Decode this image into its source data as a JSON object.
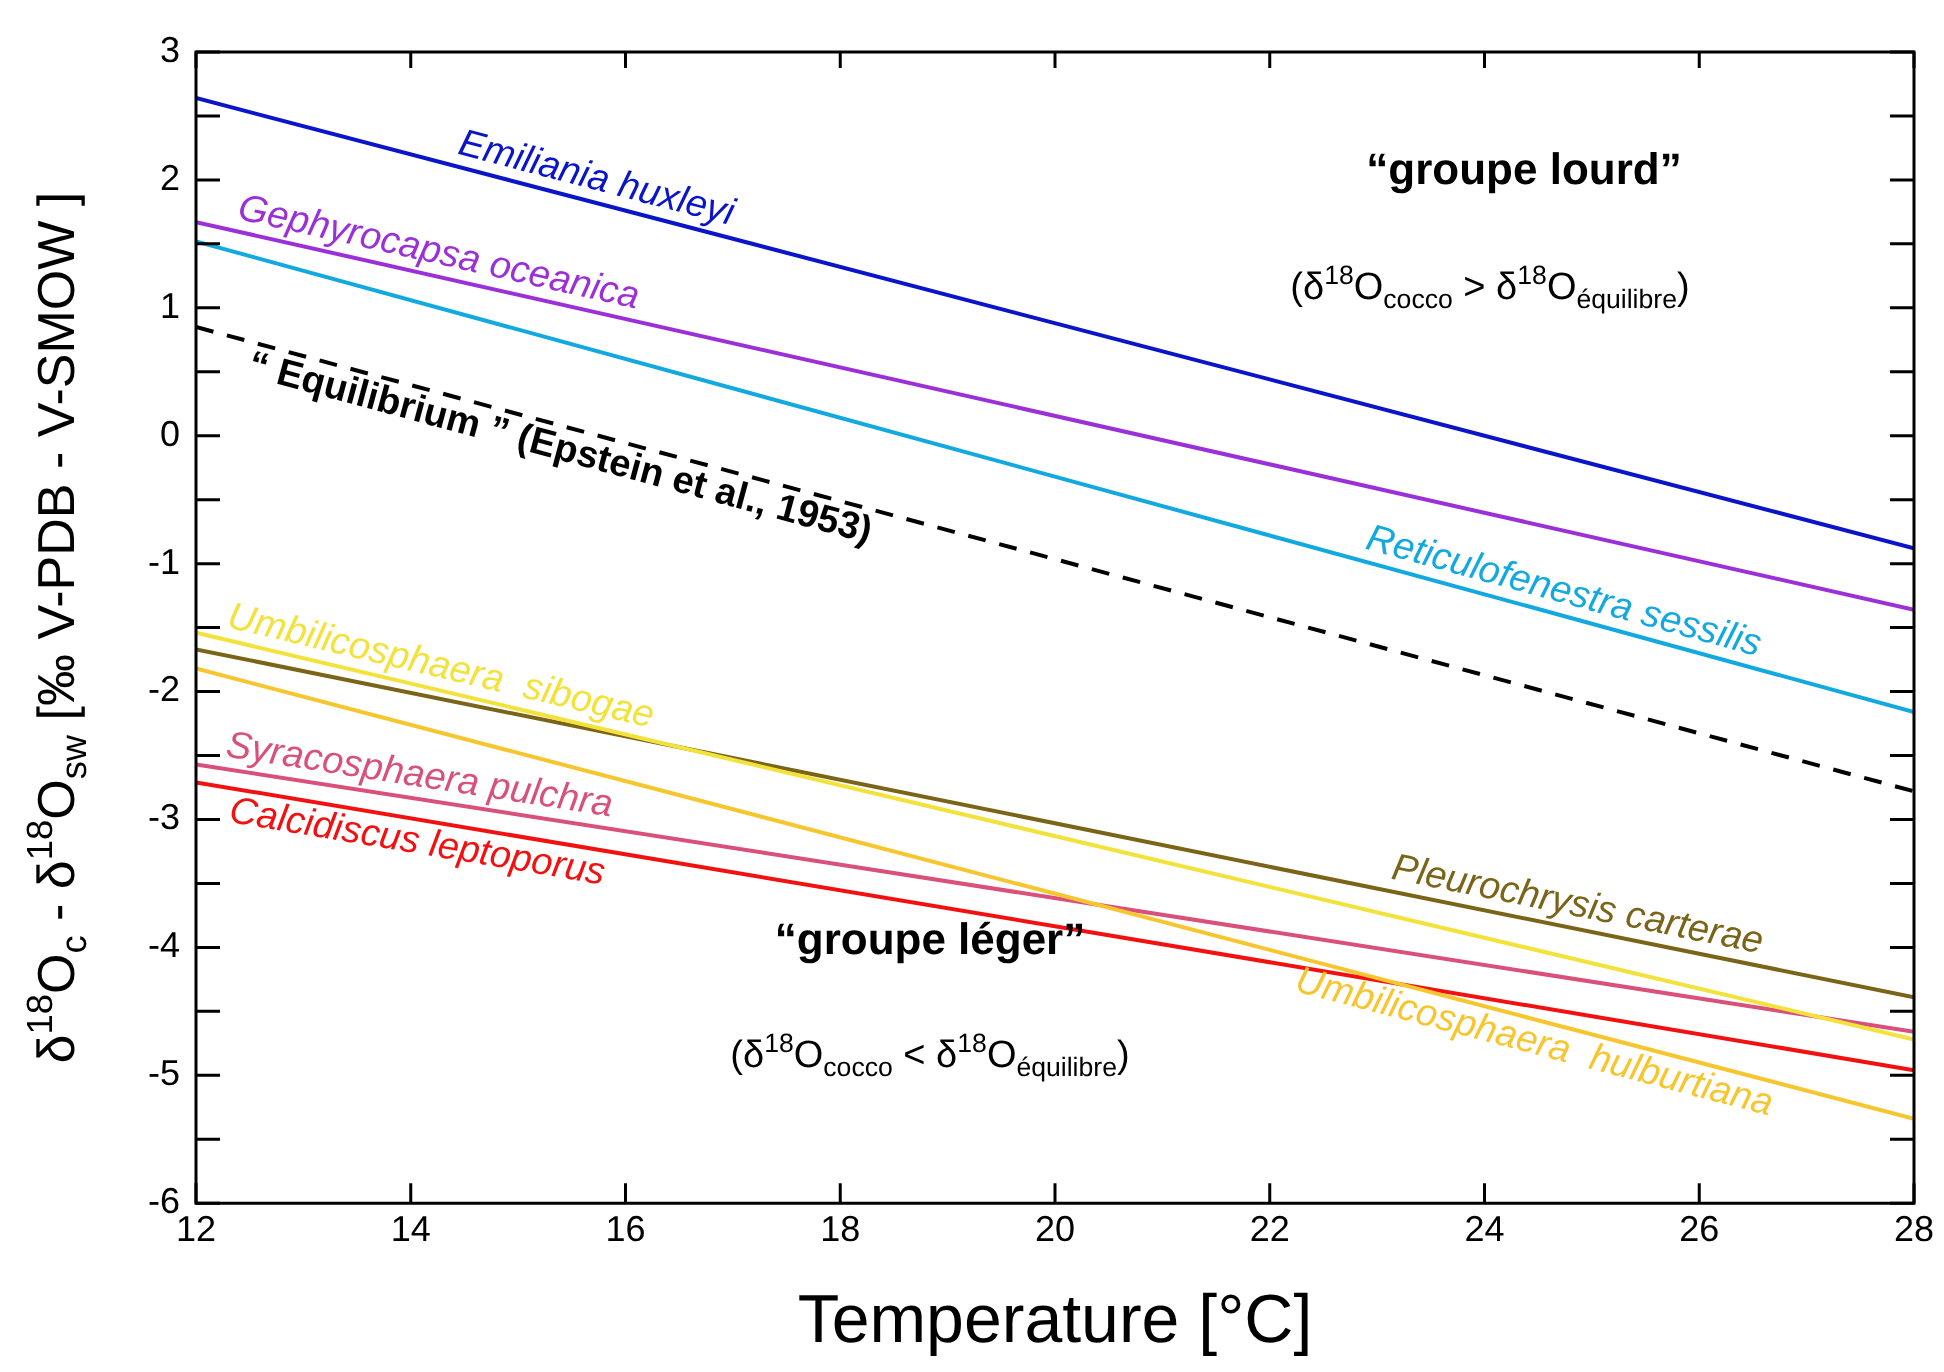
{
  "chart_data": {
    "type": "line",
    "xlabel": "Temperature [°C]",
    "ylabel": "δ$^{18}$O$_{c}$ - δ$^{18}$O$_{sw}$ [‰ V-PDB - V-SMOW ]",
    "x": [
      12,
      28
    ],
    "series": [
      {
        "name": "Emiliania huxleyi",
        "color": "#0a14c8",
        "values": [
          2.64,
          -0.88
        ]
      },
      {
        "name": "Gephyrocapsa oceanica",
        "color": "#9b30d9",
        "values": [
          1.67,
          -1.36
        ]
      },
      {
        "name": "Reticulofenestra sessilis",
        "color": "#12a8e0",
        "values": [
          1.52,
          -2.16
        ]
      },
      {
        "name": "“ Equilibrium ” (Epstein et al., 1953)",
        "color": "#000000",
        "line_style": "dashed",
        "values": [
          0.85,
          -2.78
        ]
      },
      {
        "name": "Umbilicosphaera  sibogae",
        "color": "#f2e23a",
        "values": [
          -1.54,
          -4.72
        ]
      },
      {
        "name": "Pleurochrysis carterae",
        "color": "#7a6418",
        "values": [
          -1.67,
          -4.39
        ]
      },
      {
        "name": "Umbilicosphaera  hulburtiana",
        "color": "#f7c62e",
        "values": [
          -1.82,
          -5.34
        ]
      },
      {
        "name": "Syracosphaera pulchra",
        "color": "#d9507a",
        "values": [
          -2.57,
          -4.66
        ]
      },
      {
        "name": "Calcidiscus leptoporus",
        "color": "#f21010",
        "values": [
          -2.71,
          -4.96
        ]
      }
    ],
    "xlim": [
      12,
      28
    ],
    "xticks": [
      12,
      14,
      16,
      18,
      20,
      22,
      24,
      26,
      28
    ],
    "ylim": [
      -6,
      3
    ],
    "yticks": [
      -6,
      {
        "value": -5.5,
        "label": null
      },
      -5,
      {
        "value": -4.5,
        "label": null
      },
      -4,
      {
        "value": -3.5,
        "label": null
      },
      -3,
      {
        "value": -2.5,
        "label": null
      },
      -2,
      {
        "value": -1.5,
        "label": null
      },
      -1,
      {
        "value": -0.5,
        "label": null
      },
      0,
      {
        "value": 0.5,
        "label": null
      },
      1,
      {
        "value": 1.5,
        "label": null
      },
      2,
      {
        "value": 2.5,
        "label": null
      },
      3
    ],
    "grid": false,
    "legend": false,
    "marker": "none",
    "line_style": "solid",
    "annotations": [
      "“groupe lourd”",
      "(δ$^{18}$O$_{cocco}$ > δ$^{18}$O$_{équilibre}$)",
      "“groupe léger”",
      "(δ$^{18}$O$_{cocco}$ < δ$^{18}$O$_{équilibre}$)"
    ]
  }
}
